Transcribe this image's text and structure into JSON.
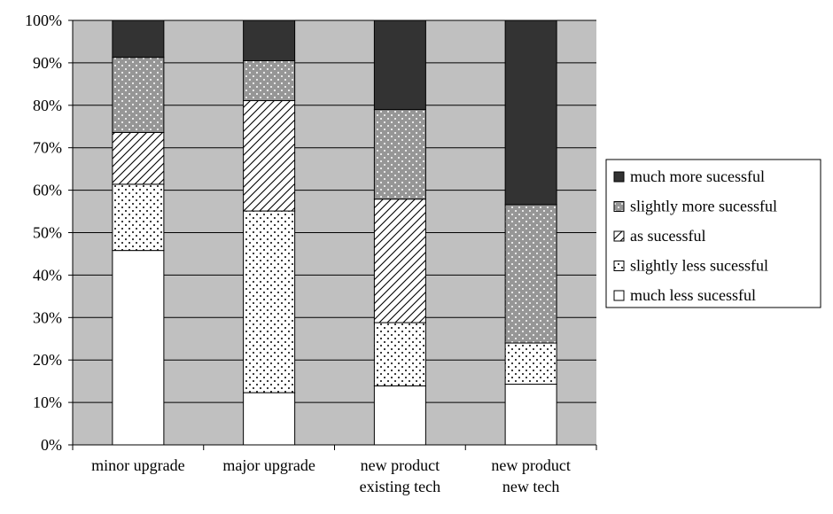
{
  "chart_data": {
    "type": "bar",
    "stacked": true,
    "title": "",
    "xlabel": "",
    "ylabel": "",
    "ylim": [
      0,
      100
    ],
    "y_ticks": [
      "0%",
      "10%",
      "20%",
      "30%",
      "40%",
      "50%",
      "60%",
      "70%",
      "80%",
      "90%",
      "100%"
    ],
    "grid": true,
    "legend_position": "right",
    "categories": [
      [
        "minor upgrade"
      ],
      [
        "major upgrade"
      ],
      [
        "new product",
        "existing tech"
      ],
      [
        "new product",
        "new tech"
      ]
    ],
    "series": [
      {
        "name": "much less sucessful",
        "pattern": "white",
        "values": [
          45.8,
          12.3,
          13.9,
          14.3
        ]
      },
      {
        "name": "slightly less sucessful",
        "pattern": "dots",
        "values": [
          15.6,
          42.8,
          14.9,
          9.7
        ]
      },
      {
        "name": "as sucessful",
        "pattern": "diagonal",
        "values": [
          12.2,
          26.0,
          29.1,
          0.0
        ]
      },
      {
        "name": "slightly more sucessful",
        "pattern": "gray-dots",
        "values": [
          17.7,
          9.4,
          21.1,
          32.6
        ]
      },
      {
        "name": "much more sucessful",
        "pattern": "dark",
        "values": [
          8.7,
          9.5,
          21.0,
          43.4
        ]
      }
    ],
    "legend_order": [
      4,
      3,
      2,
      1,
      0
    ],
    "colors": {
      "plot_background": "#c0c0c0",
      "dark_fill": "#333333",
      "gray_fill": "#969696",
      "white_fill": "#ffffff",
      "stroke": "#000000"
    }
  }
}
